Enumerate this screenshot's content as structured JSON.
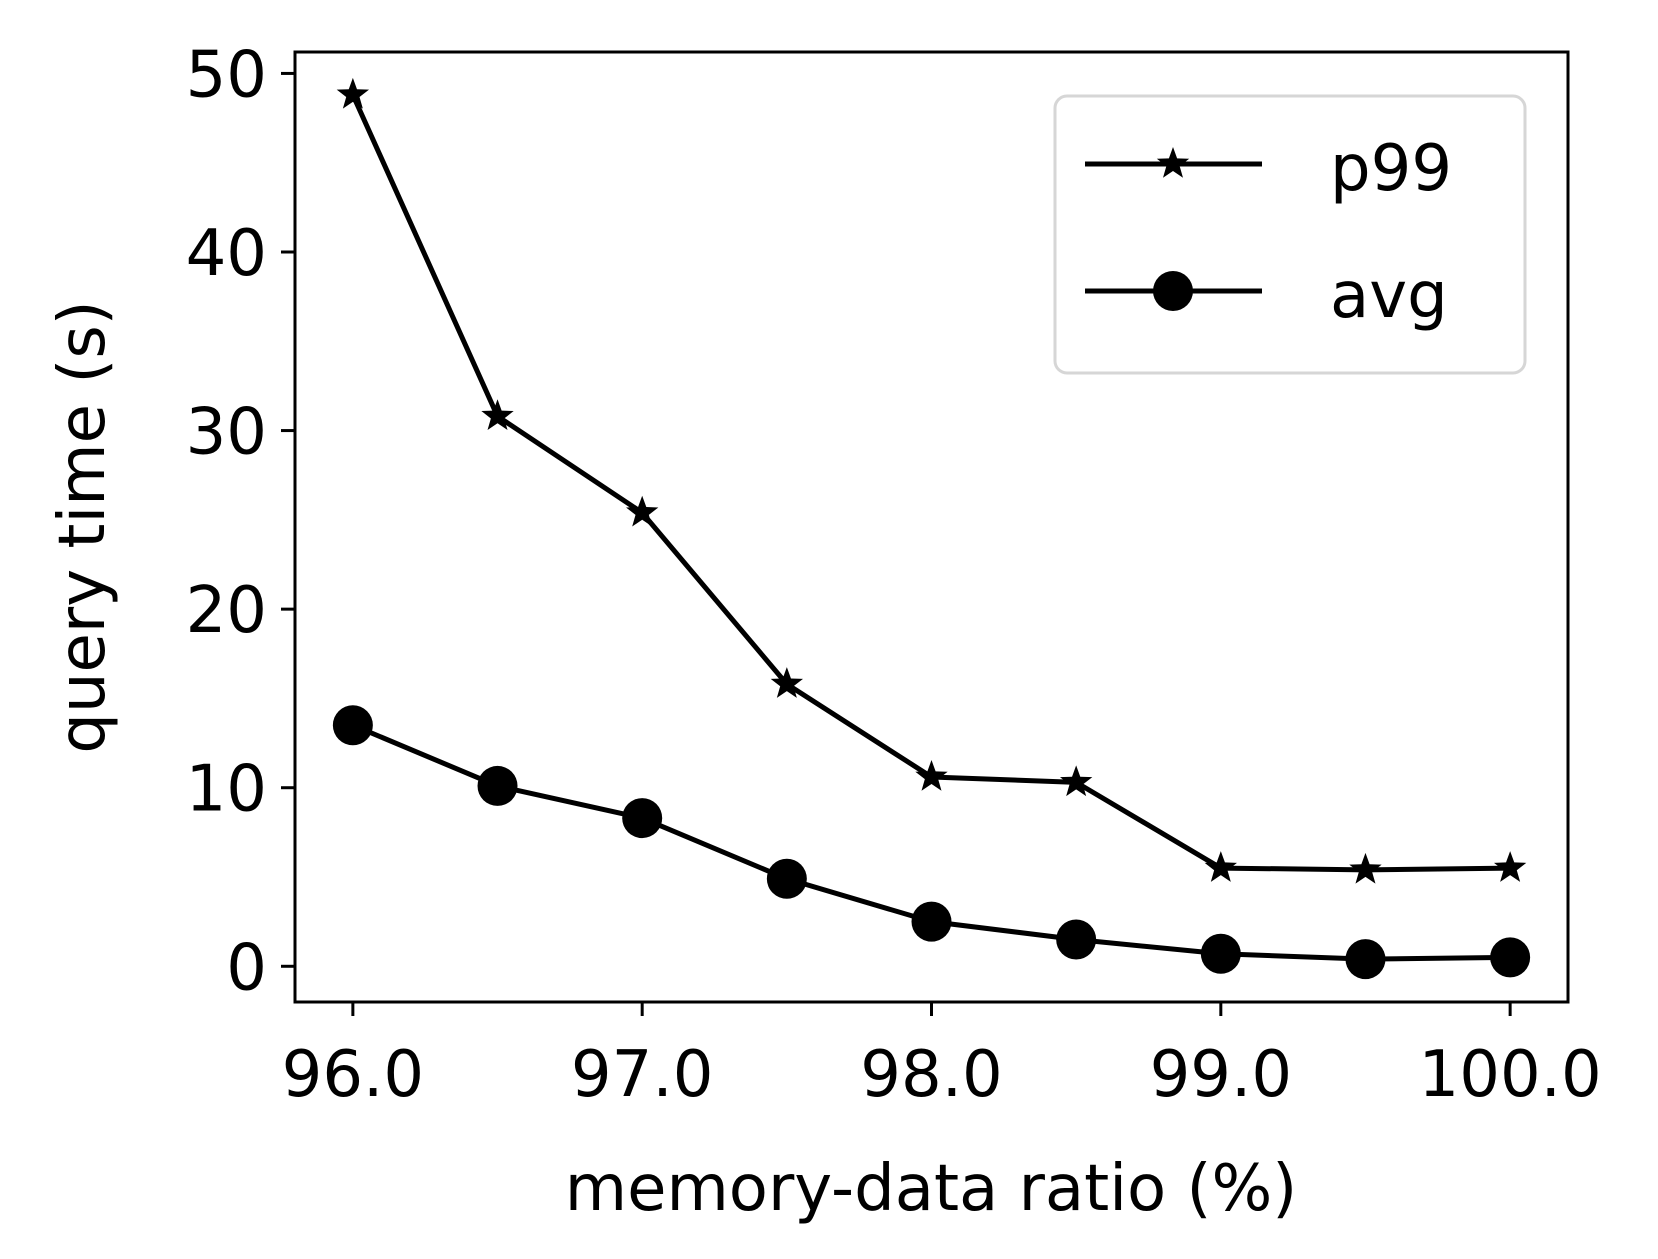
{
  "chart_data": {
    "type": "line",
    "title": "",
    "xlabel": "memory-data ratio (%)",
    "ylabel": "query time (s)",
    "x": [
      96.0,
      96.5,
      97.0,
      97.5,
      98.0,
      98.5,
      99.0,
      99.5,
      100.0
    ],
    "xticks": [
      96.0,
      97.0,
      98.0,
      99.0,
      100.0
    ],
    "xtick_labels": [
      "96.0",
      "97.0",
      "98.0",
      "99.0",
      "100.0"
    ],
    "yticks": [
      0,
      10,
      20,
      30,
      40,
      50
    ],
    "ytick_labels": [
      "0",
      "10",
      "20",
      "30",
      "40",
      "50"
    ],
    "xlim": [
      95.8,
      100.2
    ],
    "ylim": [
      -2,
      51.2
    ],
    "grid": false,
    "legend_position": "top-right",
    "series": [
      {
        "name": "p99",
        "marker": "star",
        "color": "#000000",
        "values": [
          48.8,
          30.8,
          25.4,
          15.8,
          10.6,
          10.3,
          5.5,
          5.4,
          5.5
        ]
      },
      {
        "name": "avg",
        "marker": "circle",
        "color": "#000000",
        "values": [
          13.5,
          10.1,
          8.3,
          4.9,
          2.5,
          1.5,
          0.7,
          0.4,
          0.5
        ]
      }
    ]
  }
}
